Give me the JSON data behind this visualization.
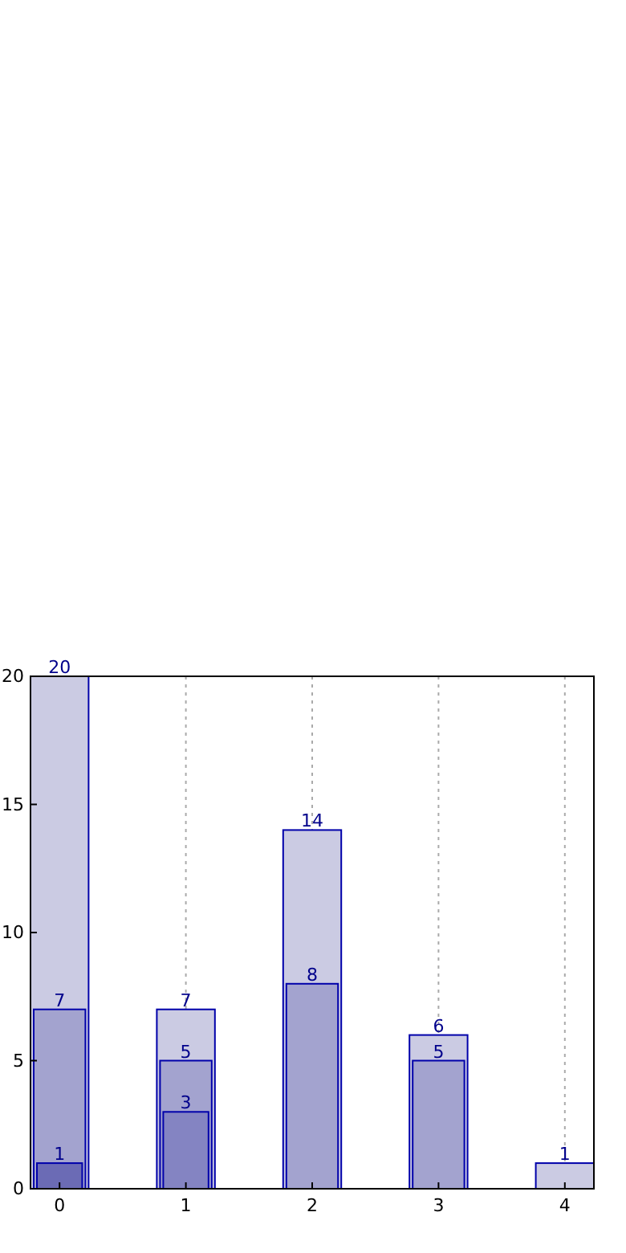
{
  "chart_data": {
    "type": "bar",
    "categories": [
      "0",
      "1",
      "2",
      "3",
      "4"
    ],
    "series": [
      {
        "color": "#cbcbe3",
        "values": [
          20,
          7,
          14,
          6,
          1
        ]
      },
      {
        "color": "#a3a3cf",
        "values": [
          7,
          5,
          8,
          5,
          null
        ]
      },
      {
        "colors": [
          "#6b6bb5",
          "#8484c2",
          null,
          null,
          null
        ],
        "values": [
          1,
          3,
          null,
          null,
          null
        ]
      }
    ],
    "ylim": [
      0,
      20
    ],
    "yticks": [
      0,
      5,
      10,
      15,
      20
    ],
    "grid": "x",
    "data_labels": true
  }
}
